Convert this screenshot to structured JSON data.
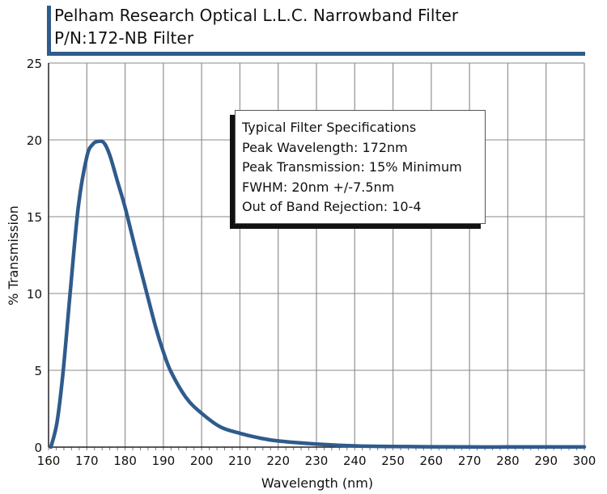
{
  "header": {
    "title_line1": "Pelham Research Optical L.L.C. Narrowband Filter",
    "title_line2": "P/N:172-NB Filter",
    "accent_color": "#2f5b8c"
  },
  "spec_box": {
    "lines": [
      "Typical Filter Specifications",
      "Peak Wavelength: 172nm",
      "Peak Transmission: 15% Minimum",
      "FWHM: 20nm +/-7.5nm",
      "Out of Band Rejection: 10-4"
    ]
  },
  "chart_data": {
    "type": "line",
    "title": "Pelham Research Optical L.L.C. Narrowband Filter P/N:172-NB Filter",
    "xlabel": "Wavelength (nm)",
    "ylabel": "% Transmission",
    "xlim": [
      160,
      300
    ],
    "ylim": [
      0,
      25
    ],
    "xticks": [
      160,
      170,
      180,
      190,
      200,
      210,
      220,
      230,
      240,
      250,
      260,
      270,
      280,
      290,
      300
    ],
    "yticks": [
      0,
      5,
      10,
      15,
      20,
      25
    ],
    "grid": true,
    "series": [
      {
        "name": "Transmission",
        "color": "#2f5b8c",
        "x": [
          160.6,
          162.2,
          163.8,
          165.7,
          167.8,
          170.0,
          171.5,
          173.0,
          174.5,
          176.0,
          178.0,
          180.0,
          183.0,
          186.0,
          188.0,
          190.0,
          192.0,
          196.0,
          200.0,
          205.0,
          210.0,
          215.0,
          220.0,
          230.0,
          240.0,
          250.0,
          260.0,
          270.0,
          280.0,
          290.0,
          300.0
        ],
        "y": [
          0.0,
          1.6,
          4.9,
          10.2,
          15.7,
          18.9,
          19.7,
          19.9,
          19.8,
          19.0,
          17.3,
          15.6,
          12.6,
          9.7,
          7.8,
          6.2,
          4.9,
          3.2,
          2.2,
          1.3,
          0.9,
          0.6,
          0.4,
          0.2,
          0.08,
          0.04,
          0.02,
          0.01,
          0.01,
          0.01,
          0.01
        ]
      }
    ]
  }
}
